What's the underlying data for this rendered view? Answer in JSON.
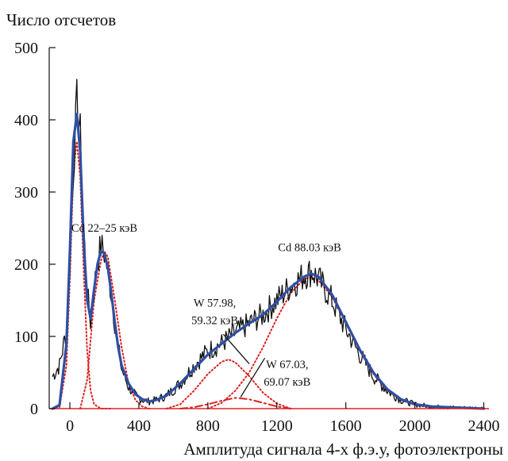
{
  "chart_data": {
    "type": "line",
    "title": "",
    "xlabel": "Амплитуда сигнала 4-х ф.э.у, фотоэлектроны",
    "ylabel": "Число отсчетов",
    "xlim": [
      -120,
      2430
    ],
    "ylim": [
      0,
      500
    ],
    "x_ticks": [
      "0",
      "400",
      "800",
      "1200",
      "1600",
      "2000",
      "2400"
    ],
    "y_ticks": [
      "0",
      "100",
      "200",
      "300",
      "400",
      "500"
    ],
    "grid": false,
    "colors": {
      "measured": "#111111",
      "total_fit": "#2f4fa3",
      "components": "#dd2222"
    },
    "series": [
      {
        "role": "measured",
        "x": [
          -100,
          -60,
          -20,
          0,
          20,
          40,
          60,
          80,
          100,
          120,
          140,
          160,
          180,
          200,
          220,
          240,
          260,
          280,
          300,
          340,
          380,
          420,
          460,
          500,
          560,
          640,
          720,
          800,
          880,
          960,
          1040,
          1120,
          1200,
          1280,
          1360,
          1400,
          1440,
          1520,
          1600,
          1680,
          1760,
          1840,
          1920,
          2000,
          2100,
          2200,
          2300,
          2400
        ],
        "y": [
          45,
          60,
          110,
          200,
          330,
          425,
          380,
          250,
          160,
          120,
          165,
          205,
          225,
          215,
          190,
          160,
          120,
          85,
          55,
          30,
          18,
          12,
          10,
          12,
          18,
          35,
          60,
          80,
          90,
          105,
          118,
          130,
          150,
          170,
          185,
          190,
          180,
          150,
          110,
          75,
          45,
          25,
          12,
          6,
          3,
          2,
          1,
          1
        ]
      },
      {
        "role": "total_fit",
        "x": [
          -100,
          -60,
          -20,
          0,
          20,
          40,
          60,
          80,
          100,
          120,
          140,
          160,
          180,
          200,
          220,
          240,
          260,
          280,
          300,
          340,
          380,
          420,
          460,
          500,
          560,
          640,
          720,
          800,
          880,
          960,
          1040,
          1120,
          1200,
          1280,
          1360,
          1400,
          1440,
          1520,
          1600,
          1680,
          1760,
          1840,
          1920,
          2000,
          2100,
          2200,
          2300,
          2400
        ],
        "y": [
          0,
          5,
          90,
          220,
          370,
          408,
          355,
          230,
          150,
          125,
          165,
          200,
          218,
          215,
          195,
          160,
          120,
          85,
          60,
          35,
          20,
          13,
          10,
          12,
          18,
          35,
          55,
          75,
          90,
          105,
          118,
          130,
          148,
          168,
          183,
          187,
          183,
          158,
          120,
          82,
          50,
          27,
          13,
          6,
          3,
          2,
          1,
          0
        ]
      },
      {
        "role": "peak_low",
        "x": [
          -100,
          -60,
          -20,
          0,
          20,
          40,
          60,
          80,
          100,
          120,
          140,
          180,
          240
        ],
        "y": [
          0,
          2,
          60,
          180,
          330,
          370,
          320,
          190,
          80,
          25,
          6,
          0,
          0
        ]
      },
      {
        "role": "peak_cd_22_25",
        "x": [
          60,
          100,
          140,
          180,
          200,
          220,
          260,
          300,
          340,
          380,
          420,
          460
        ],
        "y": [
          0,
          40,
          150,
          205,
          218,
          210,
          150,
          85,
          35,
          12,
          3,
          0
        ]
      },
      {
        "role": "peak_w_57_59",
        "x": [
          560,
          640,
          720,
          800,
          880,
          920,
          960,
          1040,
          1120,
          1200,
          1280
        ],
        "y": [
          0,
          6,
          25,
          48,
          65,
          68,
          64,
          45,
          22,
          7,
          0
        ]
      },
      {
        "role": "peak_w_67_69",
        "x": [
          640,
          720,
          800,
          880,
          960,
          1040,
          1120,
          1200,
          1280
        ],
        "y": [
          0,
          2,
          6,
          11,
          15,
          13,
          8,
          3,
          0
        ]
      },
      {
        "role": "peak_cd_88",
        "x": [
          800,
          880,
          960,
          1040,
          1120,
          1200,
          1280,
          1360,
          1400,
          1440,
          1520,
          1600,
          1680,
          1760,
          1840,
          1920,
          2000,
          2100,
          2200
        ],
        "y": [
          0,
          8,
          25,
          50,
          85,
          125,
          160,
          180,
          182,
          178,
          155,
          118,
          80,
          48,
          25,
          12,
          5,
          1,
          0
        ]
      }
    ],
    "annotations": [
      {
        "text": "Cd 22–25 кэВ",
        "x": 200,
        "y": 245
      },
      {
        "text": "Cd 88.03 кэВ",
        "x": 1390,
        "y": 218
      },
      {
        "text": "W 57.98,",
        "x": 840,
        "y": 141
      },
      {
        "text": "59.32 кэВ",
        "x": 840,
        "y": 117
      },
      {
        "text": "W 67.03,",
        "x": 1260,
        "y": 56
      },
      {
        "text": "69.07 кэВ",
        "x": 1260,
        "y": 32
      }
    ]
  }
}
